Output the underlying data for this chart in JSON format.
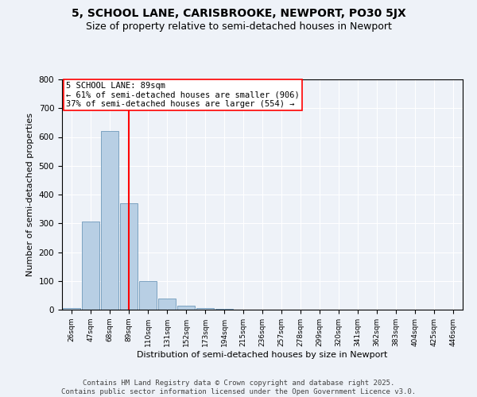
{
  "title": "5, SCHOOL LANE, CARISBROOKE, NEWPORT, PO30 5JX",
  "subtitle": "Size of property relative to semi-detached houses in Newport",
  "xlabel": "Distribution of semi-detached houses by size in Newport",
  "ylabel": "Number of semi-detached properties",
  "annotation_line1": "5 SCHOOL LANE: 89sqm",
  "annotation_line2": "← 61% of semi-detached houses are smaller (906)",
  "annotation_line3": "37% of semi-detached houses are larger (554) →",
  "footer1": "Contains HM Land Registry data © Crown copyright and database right 2025.",
  "footer2": "Contains public sector information licensed under the Open Government Licence v3.0.",
  "bin_labels": [
    "26sqm",
    "47sqm",
    "68sqm",
    "89sqm",
    "110sqm",
    "131sqm",
    "152sqm",
    "173sqm",
    "194sqm",
    "215sqm",
    "236sqm",
    "257sqm",
    "278sqm",
    "299sqm",
    "320sqm",
    "341sqm",
    "362sqm",
    "383sqm",
    "404sqm",
    "425sqm",
    "446sqm"
  ],
  "bar_values": [
    5,
    305,
    620,
    370,
    100,
    40,
    15,
    5,
    3,
    1,
    1,
    0,
    0,
    0,
    0,
    0,
    0,
    0,
    0,
    0,
    0
  ],
  "bar_color": "#b8cfe4",
  "bar_edge_color": "#5a8ab0",
  "red_line_index": 3,
  "ylim": [
    0,
    800
  ],
  "yticks": [
    0,
    100,
    200,
    300,
    400,
    500,
    600,
    700,
    800
  ],
  "background_color": "#eef2f8",
  "plot_background": "#eef2f8",
  "grid_color": "#ffffff",
  "title_fontsize": 10,
  "subtitle_fontsize": 9,
  "annotation_fontsize": 7.5,
  "footer_fontsize": 6.5,
  "ylabel_fontsize": 8,
  "xlabel_fontsize": 8
}
